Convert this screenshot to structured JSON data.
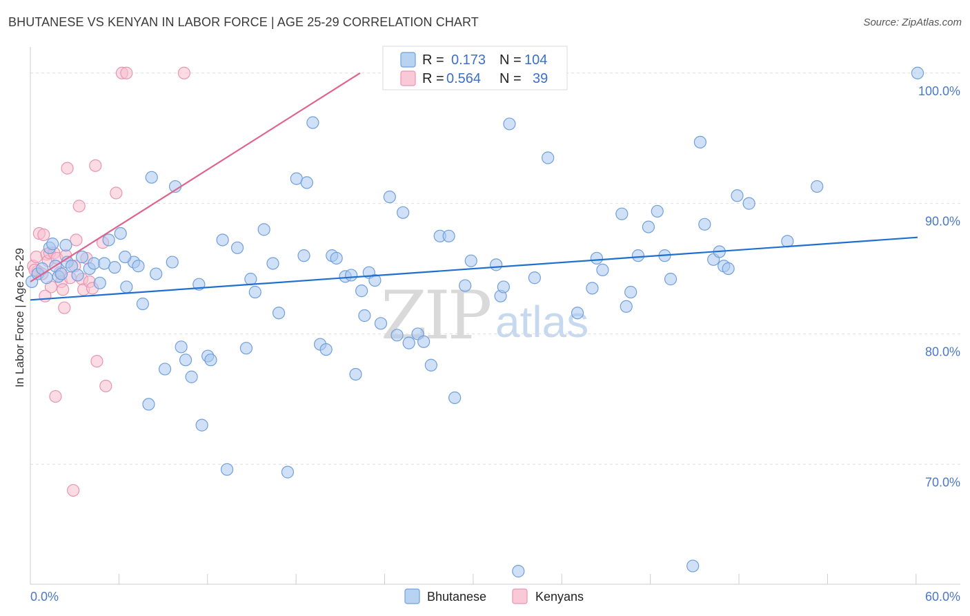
{
  "header": {
    "title": "BHUTANESE VS KENYAN IN LABOR FORCE | AGE 25-29 CORRELATION CHART",
    "source": "Source: ZipAtlas.com"
  },
  "legend": {
    "row1": {
      "r_label": "R =",
      "r_value": "0.173",
      "n_label": "N =",
      "n_value": "104"
    },
    "row2": {
      "r_label": "R =",
      "r_value": "0.564",
      "n_label": "N =",
      "n_value": "39"
    }
  },
  "bottom_legend": {
    "series1": "Bhutanese",
    "series2": "Kenyans"
  },
  "watermark": {
    "part1": "ZIP",
    "part2": "atlas"
  },
  "colors": {
    "blue_fill": "#a9c8f0",
    "blue_stroke": "#6f9fdc",
    "blue_line": "#1f6fcf",
    "pink_fill": "#f7bfd0",
    "pink_stroke": "#e895b0",
    "pink_line": "#e0628f",
    "grid": "#dddddd",
    "tick_label": "#4a78c8"
  },
  "chart_data": {
    "type": "scatter",
    "title": "BHUTANESE VS KENYAN IN LABOR FORCE | AGE 25-29 CORRELATION CHART",
    "xlabel": "",
    "ylabel": "In Labor Force | Age 25-29",
    "xlim": [
      0,
      60
    ],
    "ylim": [
      60.8,
      102
    ],
    "x_tick_labels": [
      "0.0%",
      "60.0%"
    ],
    "y_ticks": [
      70,
      80,
      90,
      100
    ],
    "y_tick_labels": [
      "70.0%",
      "80.0%",
      "90.0%",
      "100.0%"
    ],
    "grid": true,
    "series": [
      {
        "name": "Bhutanese",
        "R": 0.173,
        "N": 104,
        "trend": {
          "x": [
            0,
            60
          ],
          "y": [
            82.6,
            87.4
          ]
        },
        "points": [
          [
            0.1,
            84.0
          ],
          [
            0.5,
            84.6
          ],
          [
            0.8,
            85.0
          ],
          [
            1.1,
            84.3
          ],
          [
            1.3,
            86.6
          ],
          [
            1.5,
            86.9
          ],
          [
            1.7,
            85.2
          ],
          [
            1.9,
            84.4
          ],
          [
            2.1,
            84.6
          ],
          [
            2.5,
            85.5
          ],
          [
            2.8,
            85.2
          ],
          [
            3.2,
            84.5
          ],
          [
            3.5,
            85.9
          ],
          [
            4.0,
            85.0
          ],
          [
            4.3,
            85.4
          ],
          [
            4.7,
            83.9
          ],
          [
            5.0,
            85.4
          ],
          [
            5.3,
            87.2
          ],
          [
            5.7,
            85.1
          ],
          [
            6.1,
            87.7
          ],
          [
            6.5,
            83.6
          ],
          [
            7.0,
            85.5
          ],
          [
            7.3,
            85.2
          ],
          [
            7.6,
            82.3
          ],
          [
            8.0,
            74.6
          ],
          [
            8.2,
            92.0
          ],
          [
            8.5,
            84.6
          ],
          [
            9.1,
            77.3
          ],
          [
            9.6,
            85.5
          ],
          [
            9.8,
            91.3
          ],
          [
            10.2,
            79.0
          ],
          [
            10.5,
            78.0
          ],
          [
            10.9,
            76.7
          ],
          [
            11.4,
            83.8
          ],
          [
            11.6,
            73.0
          ],
          [
            12.0,
            78.3
          ],
          [
            12.2,
            78.0
          ],
          [
            13.0,
            87.2
          ],
          [
            13.3,
            69.6
          ],
          [
            14.0,
            86.6
          ],
          [
            14.6,
            78.9
          ],
          [
            14.9,
            84.2
          ],
          [
            15.2,
            83.2
          ],
          [
            15.8,
            88.0
          ],
          [
            16.4,
            85.4
          ],
          [
            16.8,
            81.6
          ],
          [
            17.4,
            69.4
          ],
          [
            18.0,
            91.9
          ],
          [
            18.5,
            86.0
          ],
          [
            18.7,
            91.6
          ],
          [
            19.1,
            96.2
          ],
          [
            19.6,
            79.2
          ],
          [
            20.0,
            78.8
          ],
          [
            20.4,
            86.0
          ],
          [
            20.7,
            85.8
          ],
          [
            21.3,
            84.4
          ],
          [
            21.7,
            84.5
          ],
          [
            22.0,
            76.9
          ],
          [
            22.4,
            83.3
          ],
          [
            22.6,
            81.4
          ],
          [
            22.9,
            84.7
          ],
          [
            23.3,
            84.1
          ],
          [
            23.7,
            80.8
          ],
          [
            24.3,
            90.5
          ],
          [
            24.8,
            79.9
          ],
          [
            25.2,
            89.3
          ],
          [
            25.6,
            79.3
          ],
          [
            26.2,
            80.0
          ],
          [
            26.6,
            79.4
          ],
          [
            27.1,
            77.6
          ],
          [
            27.7,
            87.5
          ],
          [
            28.3,
            87.5
          ],
          [
            28.7,
            75.1
          ],
          [
            29.4,
            83.7
          ],
          [
            29.8,
            85.6
          ],
          [
            31.5,
            85.3
          ],
          [
            31.8,
            82.9
          ],
          [
            32.0,
            83.6
          ],
          [
            32.4,
            96.1
          ],
          [
            34.1,
            84.3
          ],
          [
            35.0,
            93.5
          ],
          [
            37.0,
            81.6
          ],
          [
            38.0,
            83.5
          ],
          [
            38.3,
            85.8
          ],
          [
            38.7,
            84.9
          ],
          [
            40.0,
            89.2
          ],
          [
            40.3,
            82.1
          ],
          [
            40.6,
            83.2
          ],
          [
            41.1,
            86.0
          ],
          [
            41.8,
            88.2
          ],
          [
            42.4,
            89.4
          ],
          [
            42.9,
            86.0
          ],
          [
            43.3,
            84.2
          ],
          [
            44.8,
            62.2
          ],
          [
            45.3,
            94.7
          ],
          [
            45.6,
            88.4
          ],
          [
            46.2,
            85.7
          ],
          [
            46.6,
            86.3
          ],
          [
            46.9,
            85.2
          ],
          [
            47.2,
            85.0
          ],
          [
            47.8,
            90.6
          ],
          [
            48.6,
            90.0
          ],
          [
            51.2,
            87.1
          ],
          [
            53.2,
            91.3
          ],
          [
            60.0,
            100.0
          ],
          [
            33.0,
            61.8
          ],
          [
            2.4,
            86.8
          ],
          [
            6.4,
            85.9
          ]
        ]
      },
      {
        "name": "Kenyans",
        "R": 0.564,
        "N": 39,
        "trend": {
          "x": [
            0,
            22.3
          ],
          "y": [
            84.0,
            100.0
          ]
        },
        "points": [
          [
            0.2,
            85.2
          ],
          [
            0.4,
            85.9
          ],
          [
            0.5,
            84.8
          ],
          [
            0.6,
            87.7
          ],
          [
            0.9,
            87.6
          ],
          [
            1.1,
            86.1
          ],
          [
            1.2,
            85.6
          ],
          [
            1.3,
            86.2
          ],
          [
            1.4,
            83.6
          ],
          [
            1.6,
            86.2
          ],
          [
            1.8,
            85.8
          ],
          [
            2.0,
            84.7
          ],
          [
            2.1,
            84.0
          ],
          [
            2.2,
            83.4
          ],
          [
            2.3,
            82.0
          ],
          [
            2.5,
            92.7
          ],
          [
            2.7,
            84.3
          ],
          [
            2.9,
            68.0
          ],
          [
            3.1,
            87.2
          ],
          [
            3.3,
            89.8
          ],
          [
            3.5,
            84.2
          ],
          [
            3.6,
            83.4
          ],
          [
            3.8,
            85.8
          ],
          [
            4.0,
            84.0
          ],
          [
            4.2,
            83.5
          ],
          [
            4.4,
            92.9
          ],
          [
            4.5,
            77.9
          ],
          [
            4.9,
            87.0
          ],
          [
            5.1,
            76.0
          ],
          [
            5.8,
            90.8
          ],
          [
            6.2,
            100.0
          ],
          [
            6.5,
            100.0
          ],
          [
            10.4,
            100.0
          ],
          [
            1.0,
            82.9
          ],
          [
            2.4,
            86.0
          ],
          [
            0.8,
            84.6
          ],
          [
            1.7,
            75.2
          ],
          [
            3.0,
            85.2
          ],
          [
            0.3,
            84.9
          ]
        ]
      }
    ]
  }
}
